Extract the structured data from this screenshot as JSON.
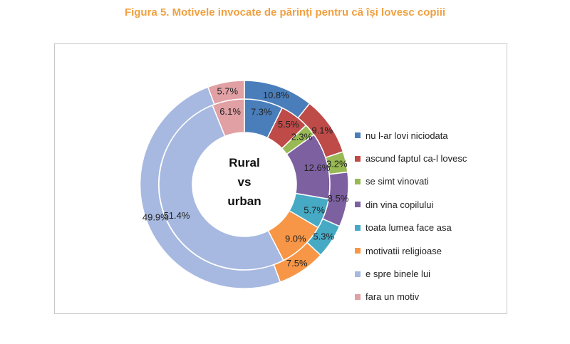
{
  "title": "Figura 5. Motivele invocate de părinți pentru că își lovesc copiii",
  "center_label": {
    "line1": "Rural",
    "line2": "vs",
    "line3": "urban"
  },
  "chart_data": {
    "type": "pie",
    "title": "Figura 5. Motivele invocate de părinți pentru că își lovesc copiii",
    "categories": [
      "nu l-ar lovi niciodata",
      "ascund faptul ca-l lovesc",
      "se simt vinovati",
      "din vina copilului",
      "toata lumea face asa",
      "motivatii religioase",
      "e spre binele lui",
      "fara un motiv"
    ],
    "colors": [
      "#4a7ebb",
      "#be4b48",
      "#98b954",
      "#7d60a0",
      "#46aac5",
      "#f79646",
      "#a7b9e0",
      "#e0a0a4"
    ],
    "legend_position": "right",
    "series": [
      {
        "values": [
          7.3,
          5.5,
          2.3,
          12.6,
          5.7,
          9.0,
          51.4,
          6.1
        ],
        "labels": [
          "7.3%",
          "5.5%",
          "2.3%",
          "12.6%",
          "5.7%",
          "9.0%",
          "51.4%",
          "6.1%"
        ]
      },
      {
        "values": [
          10.8,
          9.1,
          3.2,
          8.5,
          5.3,
          7.5,
          49.9,
          5.7
        ],
        "labels": [
          "10.8%",
          "9.1%",
          "3.2%",
          "8.5%",
          "5.3%",
          "7.5%",
          "49.9%",
          "5.7%"
        ]
      }
    ]
  }
}
